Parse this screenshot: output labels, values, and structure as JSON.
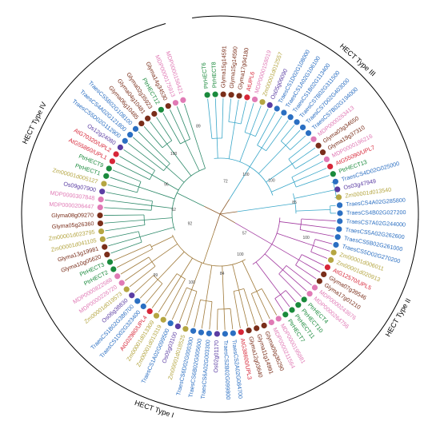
{
  "figure": {
    "type_labels": [
      "HECT Type IV",
      "HECT Type III",
      "HECT Type II",
      "HECT Type I"
    ],
    "bootstrap_labels": [
      "72",
      "100",
      "100",
      "85",
      "100",
      "57",
      "100",
      "84",
      "100",
      "99",
      "92",
      "62",
      "96",
      "100",
      "89"
    ],
    "colors": {
      "green": "#1a8a3c",
      "purple": "#5b3da3",
      "pink": "#e07ab5",
      "maroon": "#7a2e1a",
      "olive": "#b5a642",
      "red": "#d72638",
      "blue": "#2b6fc2",
      "branch_type_I": "#a07a3a",
      "branch_type_II": "#a23aa0",
      "branch_type_III": "#3aa7c9",
      "branch_type_IV": "#2e8a6a",
      "branch_core": "#8c5a2a"
    },
    "leaves": [
      {
        "label": "PtrHECT6",
        "color": "green"
      },
      {
        "label": "PtrHECT8",
        "color": "green"
      },
      {
        "label": "Glyma15g14591",
        "color": "maroon"
      },
      {
        "label": "Glyma15g14590",
        "color": "maroon"
      },
      {
        "label": "Glyma17g04180",
        "color": "maroon"
      },
      {
        "label": "AtUPL6",
        "color": "red"
      },
      {
        "label": "MDP0000158019",
        "color": "pink"
      },
      {
        "label": "Zm00001d012557",
        "color": "olive"
      },
      {
        "label": "Os05g06090",
        "color": "purple"
      },
      {
        "label": "TraesCS1D02G108000",
        "color": "blue"
      },
      {
        "label": "TraesCS1A02G106100",
        "color": "blue"
      },
      {
        "label": "TraesCS1B02G113400",
        "color": "blue"
      },
      {
        "label": "TraesCS7B02G311500",
        "color": "blue"
      },
      {
        "label": "TraesCS7D02G403000",
        "color": "blue"
      },
      {
        "label": "TraesCS7B02G194000",
        "color": "blue"
      },
      {
        "label": "MDP0000263413",
        "color": "pink"
      },
      {
        "label": "Glyma03g34650",
        "color": "maroon"
      },
      {
        "label": "Glyma19g37310",
        "color": "maroon"
      },
      {
        "label": "MDP0000196216",
        "color": "pink"
      },
      {
        "label": "AtG55090/UPL7",
        "color": "red"
      },
      {
        "label": "PtrHECT13",
        "color": "green"
      },
      {
        "label": "TraesCS4D02G025000",
        "color": "blue"
      },
      {
        "label": "Os03g47949",
        "color": "purple"
      },
      {
        "label": "Zm00001d013540",
        "color": "olive"
      },
      {
        "label": "TraesCS4A02G285800",
        "color": "blue"
      },
      {
        "label": "TraesCS4B02G027200",
        "color": "blue"
      },
      {
        "label": "TraesCS7A02G244000",
        "color": "blue"
      },
      {
        "label": "TraesCS5A02G262600",
        "color": "blue"
      },
      {
        "label": "TraesCS5B02G261000",
        "color": "blue"
      },
      {
        "label": "TraesCS5D02G270200",
        "color": "blue"
      },
      {
        "label": "Zm00001d006011",
        "color": "olive"
      },
      {
        "label": "Zm00001d020913",
        "color": "olive"
      },
      {
        "label": "AtG12570/UPL5",
        "color": "red"
      },
      {
        "label": "Glyma07g39546",
        "color": "maroon"
      },
      {
        "label": "Glyma17g01210",
        "color": "maroon"
      },
      {
        "label": "MDP0000243676",
        "color": "pink"
      },
      {
        "label": "MDP0000264756",
        "color": "pink"
      },
      {
        "label": "PtrHECT4",
        "color": "green"
      },
      {
        "label": "PtrHECT10",
        "color": "green"
      },
      {
        "label": "PtrHECT11",
        "color": "green"
      },
      {
        "label": "PtrHECT7",
        "color": "green"
      },
      {
        "label": "MDP0000195881",
        "color": "pink"
      },
      {
        "label": "MDP0000211564",
        "color": "pink"
      },
      {
        "label": "Glyma09g36290",
        "color": "maroon"
      },
      {
        "label": "Glyma11g14991",
        "color": "maroon"
      },
      {
        "label": "Glyma12g03640",
        "color": "maroon"
      },
      {
        "label": "AtG38600/UPL3",
        "color": "red"
      },
      {
        "label": "TraesCS2A02G084700",
        "color": "blue"
      },
      {
        "label": "TraesCS2B02G099800",
        "color": "blue"
      },
      {
        "label": "Os02g01170",
        "color": "purple"
      },
      {
        "label": "TraesCS6A02G003300",
        "color": "blue"
      },
      {
        "label": "TraesCS6B02G005600",
        "color": "blue"
      },
      {
        "label": "TraesCS6D02G000300",
        "color": "blue"
      },
      {
        "label": "Zm00001d018525",
        "color": "olive"
      },
      {
        "label": "Os05g03100",
        "color": "purple"
      },
      {
        "label": "TraesCS1A02G099500",
        "color": "blue"
      },
      {
        "label": "Zm00001d013319",
        "color": "olive"
      },
      {
        "label": "Zm00001d013309",
        "color": "olive"
      },
      {
        "label": "AtG02980/UPL4",
        "color": "red"
      },
      {
        "label": "TraesCS1D02G323400",
        "color": "blue"
      },
      {
        "label": "TraesCS1B02G386700",
        "color": "blue"
      },
      {
        "label": "Os06g38830",
        "color": "purple"
      },
      {
        "label": "Zm00001d019573",
        "color": "olive"
      },
      {
        "label": "MDP0000226720",
        "color": "pink"
      },
      {
        "label": "MDP0000822588",
        "color": "pink"
      },
      {
        "label": "PtrHECT2",
        "color": "green"
      },
      {
        "label": "PtrHECT3",
        "color": "green"
      },
      {
        "label": "Glyma10g05620",
        "color": "maroon"
      },
      {
        "label": "Glyma13g19981",
        "color": "maroon"
      },
      {
        "label": "Zm00001d041105",
        "color": "olive"
      },
      {
        "label": "Zm00001d023795",
        "color": "olive"
      },
      {
        "label": "Glyma05g26360",
        "color": "maroon"
      },
      {
        "label": "Glyma08g09270",
        "color": "maroon"
      },
      {
        "label": "MDP0000206447",
        "color": "pink"
      },
      {
        "label": "MDP0000307848",
        "color": "pink"
      },
      {
        "label": "Os09g07900",
        "color": "purple"
      },
      {
        "label": "Zm00001d005127",
        "color": "olive"
      },
      {
        "label": "PtrHECT1",
        "color": "green"
      },
      {
        "label": "PtrHECT9",
        "color": "green"
      },
      {
        "label": "AtG55860/UPL1",
        "color": "red"
      },
      {
        "label": "AtG70320/UPL2",
        "color": "red"
      },
      {
        "label": "Os12g24080",
        "color": "purple"
      },
      {
        "label": "TraesCS5D02G112900",
        "color": "blue"
      },
      {
        "label": "TraesCS4A02G121800",
        "color": "blue"
      },
      {
        "label": "TraesCS5B02G108100",
        "color": "blue"
      },
      {
        "label": "Glyma06g10485",
        "color": "maroon"
      },
      {
        "label": "Glyma04g10481",
        "color": "maroon"
      },
      {
        "label": "Glyma02g35923",
        "color": "maroon"
      },
      {
        "label": "PtrHECT12",
        "color": "green"
      },
      {
        "label": "Glyma14g34530",
        "color": "maroon"
      },
      {
        "label": "MDP0000175913",
        "color": "pink"
      },
      {
        "label": "MDP0000156421",
        "color": "pink"
      }
    ]
  }
}
